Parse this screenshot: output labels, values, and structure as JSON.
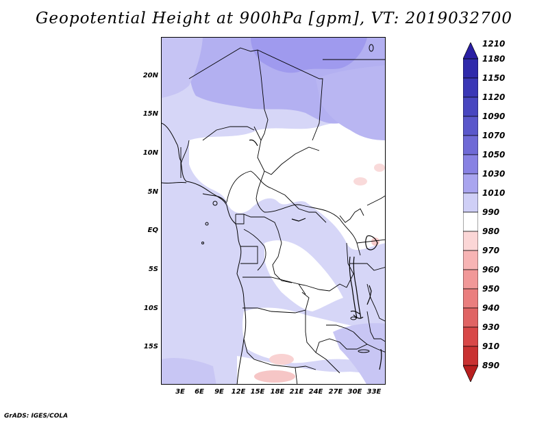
{
  "title": "Geopotential Height at 900hPa [gpm], VT: 2019032700",
  "credit": "GrADS: IGES/COLA",
  "map": {
    "variable": "Geopotential Height",
    "level": "900hPa",
    "units": "gpm",
    "valid_time": "2019032700",
    "latitude_labels": [
      "20N",
      "15N",
      "10N",
      "5N",
      "EQ",
      "5S",
      "10S",
      "15S"
    ],
    "longitude_labels": [
      "3E",
      "6E",
      "9E",
      "12E",
      "15E",
      "18E",
      "21E",
      "24E",
      "27E",
      "30E",
      "33E"
    ]
  },
  "colorbar": {
    "levels": [
      "1210",
      "1180",
      "1150",
      "1120",
      "1090",
      "1070",
      "1050",
      "1030",
      "1010",
      "990",
      "980",
      "970",
      "960",
      "950",
      "940",
      "930",
      "910",
      "890"
    ],
    "colors": [
      "#2a1fa3",
      "#2f2aab",
      "#3a37b6",
      "#4846c0",
      "#5a57cb",
      "#6f6ad6",
      "#8882e3",
      "#a9a5ef",
      "#cfcff6",
      "#ffffff",
      "#fbd6d6",
      "#f7b4b4",
      "#f19898",
      "#ea7e7e",
      "#e06464",
      "#d84848",
      "#c93232",
      "#b81f1f"
    ]
  }
}
